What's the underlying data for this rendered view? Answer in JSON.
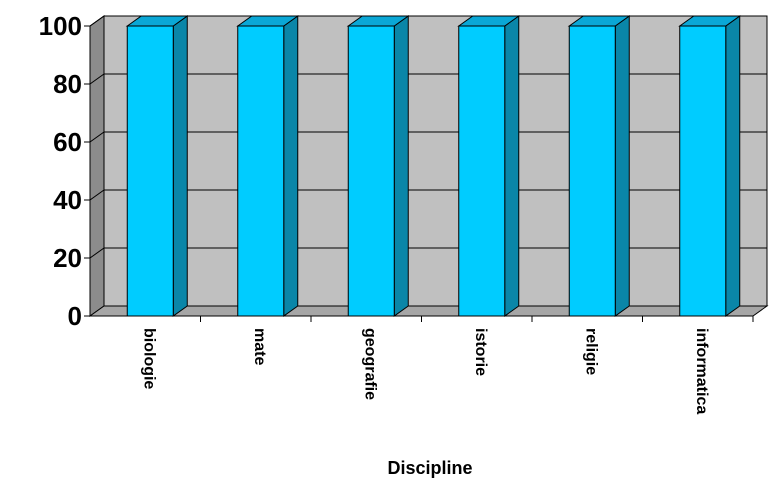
{
  "chart_data": {
    "type": "bar",
    "categories": [
      "biologie",
      "mate",
      "geografie",
      "istorie",
      "religie",
      "informatica"
    ],
    "values": [
      100,
      100,
      100,
      100,
      100,
      100
    ],
    "title": "",
    "xlabel": "Discipline",
    "ylabel": "",
    "ylim": [
      0,
      100
    ],
    "yticks": [
      0,
      20,
      40,
      60,
      80,
      100
    ],
    "grid": true,
    "three_d": true,
    "colors": {
      "bar_front": "#00CCFF",
      "bar_side": "#0A86A8",
      "bar_top": "#0AA7D6",
      "wall": "#C0C0C0",
      "wall_side": "#8C8C8C",
      "floor": "#A6A6A6",
      "gridline": "#000000"
    }
  }
}
